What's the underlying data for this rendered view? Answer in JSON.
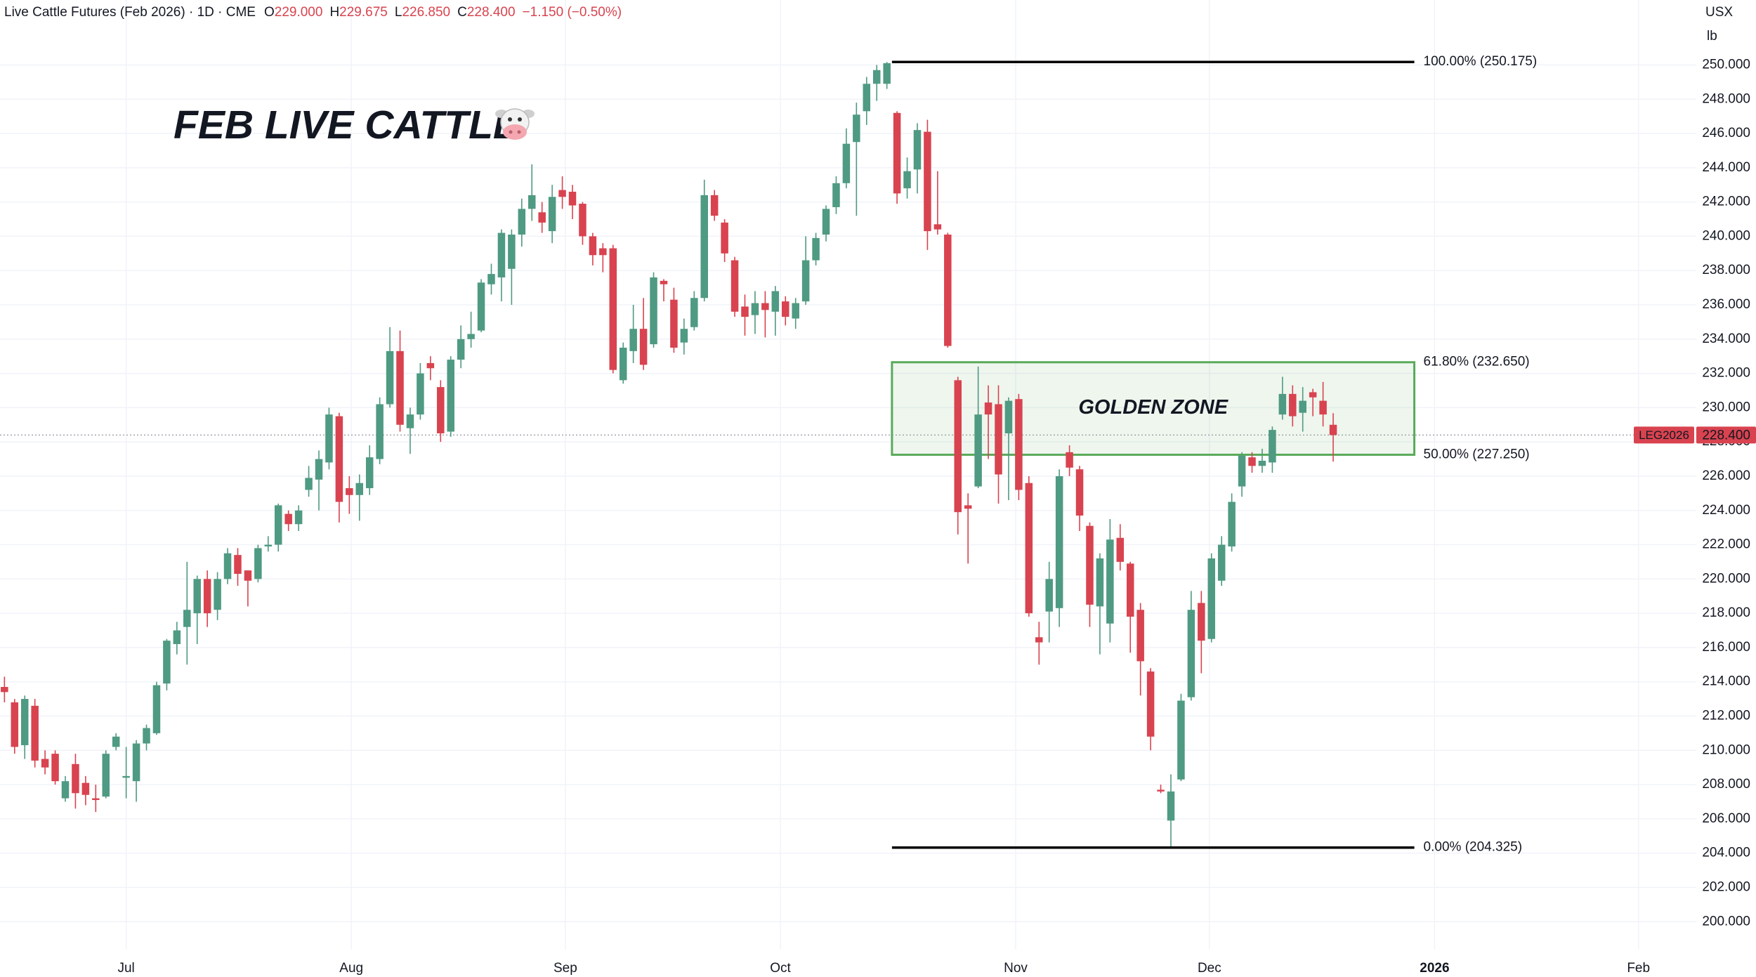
{
  "header": {
    "symbol_line": "Live Cattle Futures (Feb 2026) · 1D · CME",
    "ohlc": [
      {
        "label": "O",
        "value": "229.000"
      },
      {
        "label": "H",
        "value": "229.675"
      },
      {
        "label": "L",
        "value": "226.850"
      },
      {
        "label": "C",
        "value": "228.400"
      }
    ],
    "change": "−1.150 (−0.50%)"
  },
  "chart_data": {
    "type": "candlestick",
    "title": "FEB LIVE CATTLE",
    "currency": "USX",
    "unit": "lb",
    "up_color": "#4f9a82",
    "down_color": "#d8434f",
    "grid": true,
    "open": [
      213.7,
      212.8,
      210.3,
      212.6,
      209.5,
      209.8,
      207.2,
      209.2,
      208.1,
      207.2,
      207.3,
      210.2,
      208.4,
      208.2,
      210.4,
      211,
      213.9,
      216.2,
      217.2,
      218,
      220,
      218.2,
      220,
      221.4,
      220.5,
      220,
      221.9,
      222,
      223.8,
      223.2,
      225.2,
      225.8,
      226.8,
      229.5,
      225.3,
      224.9,
      225.3,
      227,
      230.2,
      233.3,
      228.8,
      229.6,
      232.6,
      231.2,
      228.6,
      232.8,
      234,
      234.5,
      237.2,
      237.6,
      238.1,
      240.1,
      241.6,
      241.4,
      240.3,
      242.7,
      242.6,
      241.9,
      240,
      239.3,
      239.3,
      231.6,
      233.3,
      234.6,
      233.7,
      237.4,
      236.3,
      233.8,
      234.7,
      236.4,
      242.4,
      240.8,
      238.6,
      235.9,
      235.4,
      236.1,
      235.6,
      236.2,
      235.2,
      236.2,
      238.6,
      240.1,
      241.7,
      243.1,
      245.5,
      247.3,
      248.9,
      248.9,
      247.2,
      242.8,
      243.9,
      246.1,
      240.7,
      240.1,
      231.6,
      224.3,
      225.4,
      230.3,
      230.2,
      228.5,
      230.5,
      225.6,
      216.6,
      218.1,
      218.3,
      227.4,
      226.4,
      223.1,
      218.4,
      217.4,
      222.4,
      220.9,
      218.2,
      214.6,
      207.7,
      205.9,
      208.3,
      213.1,
      218.6,
      216.5,
      219.9,
      221.9,
      225.4,
      227.1,
      226.6,
      226.8,
      229.6,
      230.8,
      229.7,
      230.9,
      230.4,
      229
    ],
    "high": [
      214.3,
      213,
      213.2,
      213,
      210,
      210,
      208.5,
      209.8,
      208.5,
      208,
      210,
      211,
      210.2,
      210.6,
      211.5,
      214,
      216.5,
      217.5,
      221,
      220.2,
      220.5,
      220.4,
      221.8,
      221.8,
      220.5,
      222,
      222.5,
      224.4,
      224,
      224.3,
      226.6,
      227.5,
      230,
      229.7,
      226,
      226.1,
      227.8,
      230.6,
      234.7,
      234.5,
      230,
      232.6,
      233,
      231.6,
      233,
      234.8,
      235.6,
      237.5,
      238.4,
      240.4,
      240.4,
      242.2,
      244.2,
      242,
      243,
      243.5,
      243,
      242,
      240.2,
      239.6,
      239.5,
      233.8,
      236,
      236.4,
      237.9,
      237.5,
      237,
      235.2,
      236.8,
      243.3,
      242.7,
      241,
      238.8,
      236.6,
      236.8,
      236.8,
      237.1,
      236.5,
      236.4,
      240,
      240.2,
      241.8,
      243.5,
      246.3,
      247.8,
      249.3,
      250,
      250.175,
      247.3,
      244.6,
      246.6,
      246.8,
      243.8,
      240.2,
      231.8,
      225,
      232.4,
      231.3,
      231.3,
      230.6,
      230.8,
      226,
      217.5,
      221,
      226.4,
      227.8,
      226.6,
      223.3,
      221.5,
      223.5,
      223.2,
      221,
      218.6,
      214.8,
      208,
      208.6,
      213.3,
      219.3,
      219.3,
      221.5,
      222.5,
      225,
      227.4,
      227.4,
      227.6,
      228.9,
      231.8,
      231.3,
      231.2,
      231.1,
      231.5,
      229.675
    ],
    "low": [
      212.8,
      209.8,
      209.5,
      209,
      208.6,
      208,
      207,
      206.6,
      206.8,
      206.4,
      207.2,
      210,
      207.2,
      207,
      210,
      210.9,
      213.5,
      215.6,
      215,
      216.2,
      217.2,
      217.6,
      219.7,
      219.6,
      218.4,
      219.8,
      221.6,
      221.6,
      222.8,
      222.8,
      224.8,
      224,
      226.4,
      223.3,
      223.8,
      223.4,
      224.9,
      226.7,
      230,
      228.6,
      227.3,
      229.3,
      231.6,
      228,
      228.3,
      232.3,
      233.5,
      234.4,
      236.6,
      236.2,
      236,
      239.4,
      240.9,
      240.2,
      239.6,
      241.6,
      241,
      239.5,
      238.3,
      237.9,
      232,
      231.4,
      232.6,
      232.2,
      233.5,
      236.2,
      233.2,
      233.1,
      234.5,
      236.2,
      240.9,
      238.5,
      235.3,
      234.2,
      234.3,
      234.1,
      234.2,
      234.8,
      234.6,
      236,
      238.3,
      239.7,
      241.3,
      242.8,
      241.2,
      246.5,
      247.9,
      248.6,
      241.9,
      242.2,
      242.5,
      239.2,
      240.1,
      233.5,
      222.6,
      220.9,
      225.3,
      227,
      224.4,
      224.6,
      224.6,
      217.8,
      215,
      216.3,
      217.2,
      226,
      222.8,
      217.2,
      215.6,
      216.3,
      220.5,
      215.7,
      213.2,
      210,
      207.5,
      204.325,
      208.2,
      212.9,
      214.5,
      216.3,
      219.6,
      221.6,
      224.8,
      226.2,
      226.2,
      226.2,
      229.3,
      228.9,
      228.6,
      229.5,
      228.9,
      226.85
    ],
    "close": [
      213.4,
      210.2,
      213,
      209.4,
      209,
      208.2,
      208.2,
      207.5,
      207.4,
      207.1,
      209.8,
      210.8,
      208.5,
      210.4,
      211.3,
      213.8,
      216.4,
      217,
      218.2,
      220,
      218,
      220,
      221.5,
      220.3,
      219.9,
      221.8,
      222,
      224.3,
      223.2,
      224,
      225.9,
      227,
      229.6,
      224.5,
      224.9,
      225.6,
      227.1,
      230.2,
      233.3,
      229,
      229.6,
      232,
      232.3,
      228.5,
      232.8,
      234,
      234.3,
      237.3,
      237.8,
      240.2,
      240.1,
      241.6,
      242.4,
      240.8,
      242.3,
      242.3,
      241.8,
      240,
      238.9,
      238.9,
      232.2,
      233.5,
      234.6,
      232.5,
      237.6,
      237.2,
      233.5,
      234.6,
      236.4,
      242.4,
      241.2,
      239,
      235.6,
      235.3,
      236.1,
      235.7,
      236.8,
      235.3,
      236.1,
      238.6,
      239.9,
      241.6,
      243.1,
      245.4,
      247.1,
      248.9,
      249.7,
      250.1,
      242.5,
      243.8,
      246.2,
      240.3,
      240.4,
      233.6,
      223.9,
      224.1,
      229.6,
      229.6,
      226.1,
      230.4,
      225.2,
      218,
      216.3,
      220,
      226,
      226.5,
      223.7,
      218.5,
      221.2,
      222.3,
      221,
      217.8,
      215.2,
      210.8,
      207.6,
      207.6,
      212.9,
      218.2,
      216.4,
      221.2,
      222,
      224.5,
      227.2,
      226.6,
      226.9,
      228.7,
      230.8,
      229.5,
      230.4,
      230.6,
      229.6,
      228.4
    ],
    "xlim": [
      -0.44,
      166.8
    ],
    "xticks": [
      {
        "value": 12,
        "label": "Jul"
      },
      {
        "value": 34.2,
        "label": "Aug"
      },
      {
        "value": 55.3,
        "label": "Sep"
      },
      {
        "value": 76.5,
        "label": "Oct"
      },
      {
        "value": 99.7,
        "label": "Nov"
      },
      {
        "value": 118.8,
        "label": "Dec"
      },
      {
        "value": 141,
        "label": "2026",
        "bold": true
      },
      {
        "value": 161.1,
        "label": "Feb"
      }
    ],
    "ylim": [
      198.37,
      253.79
    ],
    "yticks": [
      {
        "value": 200,
        "label": "200.000"
      },
      {
        "value": 202,
        "label": "202.000"
      },
      {
        "value": 204,
        "label": "204.000"
      },
      {
        "value": 206,
        "label": "206.000"
      },
      {
        "value": 208,
        "label": "208.000"
      },
      {
        "value": 210,
        "label": "210.000"
      },
      {
        "value": 212,
        "label": "212.000"
      },
      {
        "value": 214,
        "label": "214.000"
      },
      {
        "value": 216,
        "label": "216.000"
      },
      {
        "value": 218,
        "label": "218.000"
      },
      {
        "value": 220,
        "label": "220.000"
      },
      {
        "value": 222,
        "label": "222.000"
      },
      {
        "value": 224,
        "label": "224.000"
      },
      {
        "value": 226,
        "label": "226.000"
      },
      {
        "value": 228,
        "label": "228.000"
      },
      {
        "value": 230,
        "label": "230.000"
      },
      {
        "value": 232,
        "label": "232.000"
      },
      {
        "value": 234,
        "label": "234.000"
      },
      {
        "value": 236,
        "label": "236.000"
      },
      {
        "value": 238,
        "label": "238.000"
      },
      {
        "value": 240,
        "label": "240.000"
      },
      {
        "value": 242,
        "label": "242.000"
      },
      {
        "value": 244,
        "label": "244.000"
      },
      {
        "value": 246,
        "label": "246.000"
      },
      {
        "value": 248,
        "label": "248.000"
      },
      {
        "value": 250,
        "label": "250.000"
      }
    ],
    "fib_levels": [
      {
        "value": 250.175,
        "label": "100.00% (250.175)",
        "color": "#000000"
      },
      {
        "value": 204.325,
        "label": "0.00% (204.325)",
        "color": "#000000"
      }
    ],
    "fib_x_range": [
      87.5,
      139
    ],
    "golden_zone": {
      "label": "GOLDEN ZONE",
      "top": 232.65,
      "bottom": 227.25,
      "top_label": "61.80% (232.650)",
      "bottom_label": "50.00% (227.250)",
      "color": "#5aaa5a"
    },
    "last_price": {
      "symbol": "LEG2026",
      "value": 228.4,
      "label": "228.400",
      "color": "#d8434f"
    }
  }
}
